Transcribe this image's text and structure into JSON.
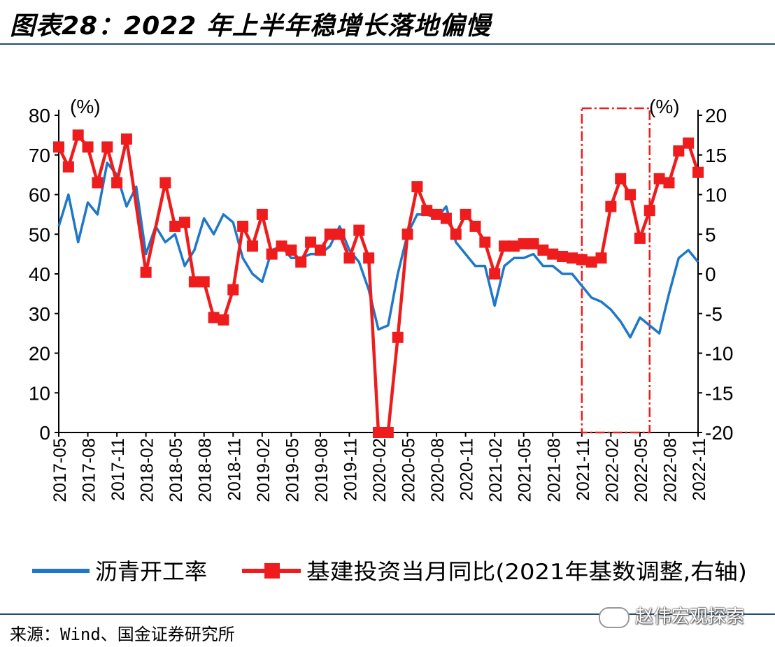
{
  "title": "图表28：2022 年上半年稳增长落地偏慢",
  "source": "来源：Wind、国金证券研究所",
  "watermark": "赵伟宏观探索",
  "colors": {
    "asphalt": "#1f77c8",
    "infra": "#ee1c1c",
    "highlight": "#ee1c1c",
    "rule": "#1f4e79"
  },
  "chart_data": {
    "type": "line",
    "left_axis": {
      "unit_label": "(%)",
      "range": [
        0,
        80
      ],
      "ticks": [
        0,
        10,
        20,
        30,
        40,
        50,
        60,
        70,
        80
      ]
    },
    "right_axis": {
      "unit_label": "(%)",
      "range": [
        -20,
        20
      ],
      "ticks": [
        -20,
        -15,
        -10,
        -5,
        0,
        5,
        10,
        15,
        20
      ]
    },
    "x_tick_labels": [
      "2017-05",
      "2017-08",
      "2017-11",
      "2018-02",
      "2018-05",
      "2018-08",
      "2018-11",
      "2019-02",
      "2019-05",
      "2019-08",
      "2019-11",
      "2020-02",
      "2020-05",
      "2020-08",
      "2020-11",
      "2021-02",
      "2021-05",
      "2021-08",
      "2021-11",
      "2022-02",
      "2022-05",
      "2022-08",
      "2022-11"
    ],
    "highlight_range": [
      "2021-11",
      "2022-06"
    ],
    "series": [
      {
        "name": "沥青开工率",
        "axis": "left",
        "x": [
          "2017-05",
          "2017-06",
          "2017-07",
          "2017-08",
          "2017-09",
          "2017-10",
          "2017-11",
          "2017-12",
          "2018-01",
          "2018-02",
          "2018-03",
          "2018-04",
          "2018-05",
          "2018-06",
          "2018-07",
          "2018-08",
          "2018-09",
          "2018-10",
          "2018-11",
          "2018-12",
          "2019-01",
          "2019-02",
          "2019-03",
          "2019-04",
          "2019-05",
          "2019-06",
          "2019-07",
          "2019-08",
          "2019-09",
          "2019-10",
          "2019-11",
          "2019-12",
          "2020-01",
          "2020-02",
          "2020-03",
          "2020-04",
          "2020-05",
          "2020-06",
          "2020-07",
          "2020-08",
          "2020-09",
          "2020-10",
          "2020-11",
          "2020-12",
          "2021-01",
          "2021-02",
          "2021-03",
          "2021-04",
          "2021-05",
          "2021-06",
          "2021-07",
          "2021-08",
          "2021-09",
          "2021-10",
          "2021-11",
          "2021-12",
          "2022-01",
          "2022-02",
          "2022-03",
          "2022-04",
          "2022-05",
          "2022-06",
          "2022-07",
          "2022-08",
          "2022-09",
          "2022-10",
          "2022-11"
        ],
        "values": [
          52,
          60,
          48,
          58,
          55,
          68,
          65,
          57,
          62,
          45,
          52,
          48,
          50,
          42,
          46,
          54,
          50,
          55,
          53,
          44,
          40,
          38,
          46,
          47,
          44,
          44,
          45,
          45,
          47,
          52,
          46,
          43,
          36,
          26,
          27,
          40,
          50,
          55,
          55,
          54,
          57,
          48,
          45,
          42,
          42,
          32,
          42,
          44,
          44,
          45,
          42,
          42,
          40,
          40,
          37,
          34,
          33,
          31,
          28,
          24,
          29,
          27,
          25,
          35,
          44,
          46,
          43
        ]
      },
      {
        "name": "基建投资当月同比(2021年基数调整,右轴)",
        "axis": "right",
        "x": [
          "2017-05",
          "2017-06",
          "2017-07",
          "2017-08",
          "2017-09",
          "2017-10",
          "2017-11",
          "2017-12",
          "2018-01",
          "2018-02",
          "2018-03",
          "2018-04",
          "2018-05",
          "2018-06",
          "2018-07",
          "2018-08",
          "2018-09",
          "2018-10",
          "2018-11",
          "2018-12",
          "2019-01",
          "2019-02",
          "2019-03",
          "2019-04",
          "2019-05",
          "2019-06",
          "2019-07",
          "2019-08",
          "2019-09",
          "2019-10",
          "2019-11",
          "2019-12",
          "2020-01",
          "2020-02",
          "2020-03",
          "2020-04",
          "2020-05",
          "2020-06",
          "2020-07",
          "2020-08",
          "2020-09",
          "2020-10",
          "2020-11",
          "2020-12",
          "2021-01",
          "2021-02",
          "2021-03",
          "2021-04",
          "2021-05",
          "2021-06",
          "2021-07",
          "2021-08",
          "2021-09",
          "2021-10",
          "2021-11",
          "2021-12",
          "2022-01",
          "2022-02",
          "2022-03",
          "2022-04",
          "2022-05",
          "2022-06",
          "2022-07",
          "2022-08",
          "2022-09",
          "2022-10",
          "2022-11"
        ],
        "values": [
          16,
          13.5,
          17.5,
          16,
          11.5,
          16,
          11.5,
          17,
          null,
          0.2,
          null,
          11.5,
          6,
          6.5,
          -1,
          -1,
          -5.5,
          -5.8,
          -2,
          6,
          3.5,
          7.5,
          2.5,
          3.5,
          3,
          1.5,
          4,
          3,
          5,
          5,
          2,
          5.5,
          2,
          -20,
          -20,
          -8,
          5,
          11,
          8,
          7.5,
          7,
          5,
          7.5,
          6,
          4,
          0,
          3.5,
          3.5,
          3.8,
          3.8,
          3,
          2.5,
          2.2,
          2,
          1.8,
          1.5,
          2,
          8.5,
          12,
          10,
          4.5,
          8,
          12,
          11.5,
          15.5,
          16.5,
          12.8
        ]
      }
    ]
  }
}
